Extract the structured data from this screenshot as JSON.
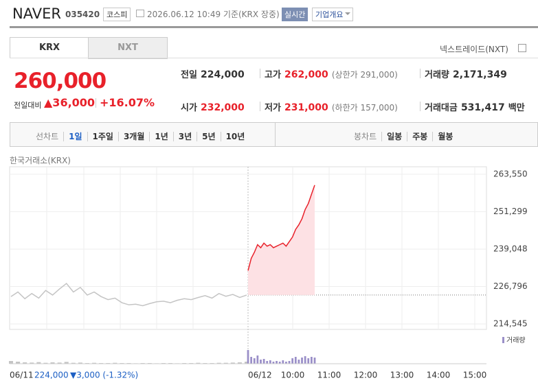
{
  "header": {
    "name": "NAVER",
    "code": "035420",
    "market": "코스피",
    "timestamp": "2026.06.12 10:49 기준(KRX 장중)",
    "realtime": "실시간",
    "company_button": "기업개요"
  },
  "tabs": [
    "KRX",
    "NXT"
  ],
  "nxt_link": "넥스트레이드(NXT)",
  "price": {
    "current": "260,000",
    "change_label": "전일대비",
    "change": "▲36,000",
    "change_pct": "+16.07%"
  },
  "stats": [
    {
      "label": "전일",
      "value": "224,000"
    },
    {
      "label": "고가",
      "value": "262,000",
      "limit": "(상한가 291,000)"
    },
    {
      "label": "거래량",
      "value": "2,171,349"
    },
    {
      "label": "시가",
      "value": "232,000"
    },
    {
      "label": "저가",
      "value": "231,000",
      "limit": "(하한가 157,000)"
    },
    {
      "label": "거래대금",
      "value": "531,417",
      "unit": "백만"
    }
  ],
  "periods": {
    "line_label": "선차트",
    "options": [
      "1일",
      "1주일",
      "3개월",
      "1년",
      "3년",
      "5년",
      "10년"
    ],
    "candle_label": "봉차트",
    "candle_options": [
      "일봉",
      "주봉",
      "월봉"
    ]
  },
  "chart": {
    "type": "line",
    "source": "한국거래소(KRX)",
    "ylim": [
      212750,
      266000
    ],
    "yticks": [
      {
        "value": 263550,
        "label": "263,550"
      },
      {
        "value": 251299,
        "label": "251,299"
      },
      {
        "value": 239048,
        "label": "239,048"
      },
      {
        "value": 226796,
        "label": "226,796"
      },
      {
        "value": 214545,
        "label": "214,545"
      }
    ],
    "xticks": [
      "06/12",
      "10:00",
      "11:00",
      "12:00",
      "13:00",
      "14:00",
      "15:00"
    ],
    "reference_price": 224000,
    "volume_label": "거래량",
    "prev_day": {
      "label": "06/11",
      "close": "224,000",
      "change": "▼3,000 (-1.32%)",
      "color": "#c4c4c4",
      "values": [
        223500,
        225000,
        222800,
        224500,
        223000,
        225500,
        224000,
        226000,
        227800,
        225000,
        226500,
        224000,
        225000,
        223500,
        222500,
        223000,
        221500,
        220800,
        221000,
        220500,
        221200,
        221800,
        222000,
        221500,
        222300,
        222800,
        222500,
        223200,
        223800,
        223000,
        224500,
        223600,
        224200,
        223200,
        224000
      ],
      "volume": [
        12000,
        9000,
        6000,
        5000,
        7000,
        4000,
        6000,
        5000,
        8000,
        4000,
        5000,
        3000,
        4000,
        3000,
        3000,
        4000,
        3000,
        3000,
        2000,
        3000,
        3000,
        2000,
        3000,
        3000,
        2000,
        3000,
        3000,
        4000,
        3000,
        3000,
        4000,
        4000,
        5000,
        6000,
        9000
      ]
    },
    "today": {
      "color": "#e8212a",
      "fill": "#fde1e4",
      "volume_color": "#9a8fc8",
      "values": [
        232000,
        236000,
        238000,
        240500,
        239500,
        241000,
        240000,
        240500,
        239500,
        240000,
        240500,
        241000,
        240000,
        241500,
        243000,
        245500,
        247000,
        249000,
        252000,
        254000,
        257000,
        260000
      ],
      "volume": [
        60000,
        30000,
        24000,
        36000,
        18000,
        21000,
        12000,
        15000,
        9000,
        12000,
        9000,
        15000,
        9000,
        12000,
        24000,
        30000,
        18000,
        27000,
        33000,
        24000,
        30000,
        27000
      ]
    }
  }
}
